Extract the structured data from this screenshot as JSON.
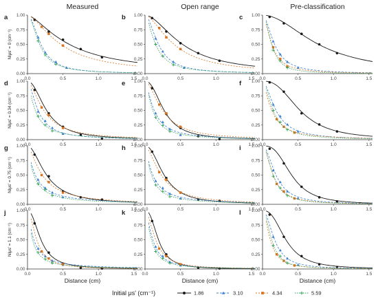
{
  "column_titles": [
    "Measured",
    "Open range",
    "Pre-classification"
  ],
  "row_ylabels": [
    "NIμs' = 0 (cm⁻¹)",
    "NIμs' = 0.34 (cm⁻¹)",
    "NIμs' = 0.75 (cm⁻¹)",
    "NIμs' = 1.1 (cm⁻¹)"
  ],
  "panel_letters": [
    "a",
    "b",
    "c",
    "d",
    "e",
    "f",
    "g",
    "h",
    "i",
    "j",
    "k",
    "l"
  ],
  "xlabel": "Distance (cm)",
  "x_ticks": [
    "0.0",
    "0.5",
    "1.0",
    "1.5"
  ],
  "y_ticks": [
    "0.00",
    "0.25",
    "0.50",
    "0.75",
    "1.00"
  ],
  "legend": {
    "title": "Initial μs' (cm⁻¹)",
    "entries": [
      "1.86",
      "3.10",
      "4.34",
      "5.59"
    ]
  },
  "colors": {
    "s1": "#1a1a1a",
    "s2": "#3b7fd1",
    "s3": "#d9731f",
    "s4": "#34a35a"
  },
  "chart_data": {
    "type": "line",
    "layout": "4x3 grid of line plots",
    "xlim": [
      0,
      1.55
    ],
    "ylim": [
      0,
      1.0
    ],
    "grid": false,
    "legend_placement": "bottom",
    "series_names": [
      "1.86",
      "3.10",
      "4.34",
      "5.59"
    ],
    "panels": [
      {
        "id": "a",
        "series": [
          {
            "name": "1.86",
            "x": [
              0.1,
              0.3,
              0.5,
              0.75,
              1.05
            ],
            "y": [
              0.92,
              0.72,
              0.58,
              0.42,
              0.28
            ]
          },
          {
            "name": "3.10",
            "x": [
              0.15,
              0.25,
              0.4,
              0.55
            ],
            "y": [
              0.62,
              0.36,
              0.2,
              0.1
            ]
          },
          {
            "name": "4.34",
            "x": [
              0.2,
              0.3,
              0.5
            ],
            "y": [
              0.8,
              0.68,
              0.48
            ]
          },
          {
            "name": "5.59",
            "x": [
              0.15,
              0.25,
              0.4
            ],
            "y": [
              0.56,
              0.32,
              0.16
            ]
          }
        ]
      },
      {
        "id": "b",
        "series": [
          {
            "name": "1.86",
            "x": [
              0.1,
              0.3,
              0.5,
              0.75,
              1.05
            ],
            "y": [
              0.95,
              0.72,
              0.52,
              0.35,
              0.22
            ]
          },
          {
            "name": "3.10",
            "x": [
              0.15,
              0.25,
              0.4,
              0.55
            ],
            "y": [
              0.6,
              0.38,
              0.2,
              0.1
            ]
          },
          {
            "name": "4.34",
            "x": [
              0.2,
              0.3,
              0.5
            ],
            "y": [
              0.78,
              0.62,
              0.42
            ]
          },
          {
            "name": "5.59",
            "x": [
              0.15,
              0.25,
              0.4
            ],
            "y": [
              0.5,
              0.3,
              0.15
            ]
          }
        ]
      },
      {
        "id": "c",
        "series": [
          {
            "name": "1.86",
            "x": [
              0.1,
              0.3,
              0.55,
              0.8,
              1.05
            ],
            "y": [
              0.97,
              0.86,
              0.68,
              0.5,
              0.35
            ]
          },
          {
            "name": "3.10",
            "x": [
              0.15,
              0.25,
              0.35,
              0.5
            ],
            "y": [
              0.55,
              0.33,
              0.2,
              0.1
            ]
          },
          {
            "name": "4.34",
            "x": [
              0.15,
              0.25,
              0.35
            ],
            "y": [
              0.45,
              0.25,
              0.12
            ]
          },
          {
            "name": "5.59",
            "x": [
              0.15,
              0.25,
              0.35
            ],
            "y": [
              0.4,
              0.22,
              0.1
            ]
          }
        ]
      },
      {
        "id": "d",
        "series": [
          {
            "name": "1.86",
            "x": [
              0.1,
              0.3,
              0.5,
              0.75,
              1.05
            ],
            "y": [
              0.85,
              0.45,
              0.22,
              0.08,
              0.02
            ]
          },
          {
            "name": "3.10",
            "x": [
              0.15,
              0.25,
              0.35,
              0.5
            ],
            "y": [
              0.48,
              0.32,
              0.2,
              0.1
            ]
          },
          {
            "name": "4.34",
            "x": [
              0.2,
              0.3,
              0.5
            ],
            "y": [
              0.55,
              0.42,
              0.2
            ]
          },
          {
            "name": "5.59",
            "x": [
              0.15,
              0.25,
              0.35
            ],
            "y": [
              0.4,
              0.25,
              0.15
            ]
          }
        ]
      },
      {
        "id": "e",
        "series": [
          {
            "name": "1.86",
            "x": [
              0.1,
              0.3,
              0.5,
              0.75,
              1.05
            ],
            "y": [
              0.88,
              0.44,
              0.2,
              0.06,
              0.01
            ]
          },
          {
            "name": "3.10",
            "x": [
              0.15,
              0.25,
              0.35,
              0.5
            ],
            "y": [
              0.45,
              0.3,
              0.18,
              0.08
            ]
          },
          {
            "name": "4.34",
            "x": [
              0.2,
              0.3,
              0.5
            ],
            "y": [
              0.6,
              0.45,
              0.22
            ]
          },
          {
            "name": "5.59",
            "x": [
              0.15,
              0.25,
              0.35
            ],
            "y": [
              0.38,
              0.24,
              0.14
            ]
          }
        ]
      },
      {
        "id": "f",
        "series": [
          {
            "name": "1.86",
            "x": [
              0.1,
              0.3,
              0.55,
              0.8,
              1.05
            ],
            "y": [
              0.98,
              0.82,
              0.45,
              0.26,
              0.14
            ]
          },
          {
            "name": "3.10",
            "x": [
              0.15,
              0.25,
              0.35,
              0.5
            ],
            "y": [
              0.6,
              0.4,
              0.26,
              0.14
            ]
          },
          {
            "name": "4.34",
            "x": [
              0.2,
              0.3,
              0.45
            ],
            "y": [
              0.35,
              0.22,
              0.12
            ]
          },
          {
            "name": "5.59",
            "x": [
              0.15,
              0.25,
              0.35
            ],
            "y": [
              0.5,
              0.3,
              0.17
            ]
          }
        ]
      },
      {
        "id": "g",
        "series": [
          {
            "name": "1.86",
            "x": [
              0.1,
              0.3,
              0.5,
              0.75,
              1.05
            ],
            "y": [
              0.85,
              0.48,
              0.22,
              0.12,
              0.08
            ]
          },
          {
            "name": "3.10",
            "x": [
              0.15,
              0.25,
              0.35,
              0.5
            ],
            "y": [
              0.42,
              0.28,
              0.2,
              0.12
            ]
          },
          {
            "name": "4.34",
            "x": [
              0.2,
              0.3,
              0.5
            ],
            "y": [
              0.5,
              0.38,
              0.2
            ]
          },
          {
            "name": "5.59",
            "x": [
              0.15,
              0.25,
              0.35
            ],
            "y": [
              0.35,
              0.25,
              0.15
            ]
          }
        ]
      },
      {
        "id": "h",
        "series": [
          {
            "name": "1.86",
            "x": [
              0.1,
              0.3,
              0.5,
              0.75,
              1.05
            ],
            "y": [
              0.9,
              0.45,
              0.2,
              0.08,
              0.06
            ]
          },
          {
            "name": "3.10",
            "x": [
              0.15,
              0.25,
              0.35,
              0.5
            ],
            "y": [
              0.4,
              0.28,
              0.18,
              0.1
            ]
          },
          {
            "name": "4.34",
            "x": [
              0.2,
              0.3,
              0.5
            ],
            "y": [
              0.55,
              0.42,
              0.2
            ]
          },
          {
            "name": "5.59",
            "x": [
              0.15,
              0.25,
              0.35
            ],
            "y": [
              0.33,
              0.22,
              0.13
            ]
          }
        ]
      },
      {
        "id": "i",
        "series": [
          {
            "name": "1.86",
            "x": [
              0.1,
              0.3,
              0.55,
              0.8,
              1.05
            ],
            "y": [
              0.95,
              0.7,
              0.3,
              0.12,
              0.05
            ]
          },
          {
            "name": "3.10",
            "x": [
              0.15,
              0.25,
              0.35,
              0.5
            ],
            "y": [
              0.58,
              0.38,
              0.22,
              0.1
            ]
          },
          {
            "name": "4.34",
            "x": [
              0.2,
              0.3,
              0.45
            ],
            "y": [
              0.35,
              0.22,
              0.1
            ]
          },
          {
            "name": "5.59",
            "x": [
              0.15,
              0.25,
              0.35
            ],
            "y": [
              0.48,
              0.28,
              0.15
            ]
          }
        ]
      },
      {
        "id": "j",
        "series": [
          {
            "name": "1.86",
            "x": [
              0.1,
              0.3,
              0.5,
              0.75,
              1.05
            ],
            "y": [
              0.78,
              0.28,
              0.09,
              0.02,
              0.01
            ]
          },
          {
            "name": "3.10",
            "x": [
              0.15,
              0.25,
              0.35,
              0.5
            ],
            "y": [
              0.35,
              0.22,
              0.14,
              0.07
            ]
          },
          {
            "name": "4.34",
            "x": [
              0.2,
              0.3,
              0.5
            ],
            "y": [
              0.3,
              0.18,
              0.08
            ]
          },
          {
            "name": "5.59",
            "x": [
              0.15,
              0.25,
              0.35
            ],
            "y": [
              0.28,
              0.17,
              0.1
            ]
          }
        ]
      },
      {
        "id": "k",
        "series": [
          {
            "name": "1.86",
            "x": [
              0.1,
              0.3,
              0.5,
              0.75,
              1.05
            ],
            "y": [
              0.82,
              0.25,
              0.08,
              0.02,
              0.01
            ]
          },
          {
            "name": "3.10",
            "x": [
              0.15,
              0.25,
              0.35,
              0.5
            ],
            "y": [
              0.38,
              0.22,
              0.12,
              0.06
            ]
          },
          {
            "name": "4.34",
            "x": [
              0.2,
              0.3,
              0.5
            ],
            "y": [
              0.35,
              0.22,
              0.08
            ]
          },
          {
            "name": "5.59",
            "x": [
              0.15,
              0.25,
              0.35
            ],
            "y": [
              0.3,
              0.18,
              0.1
            ]
          }
        ]
      },
      {
        "id": "l",
        "series": [
          {
            "name": "1.86",
            "x": [
              0.1,
              0.3,
              0.55,
              0.8,
              1.05
            ],
            "y": [
              0.93,
              0.55,
              0.22,
              0.08,
              0.03
            ]
          },
          {
            "name": "3.10",
            "x": [
              0.15,
              0.25,
              0.35,
              0.5
            ],
            "y": [
              0.55,
              0.32,
              0.18,
              0.07
            ]
          },
          {
            "name": "4.34",
            "x": [
              0.2,
              0.3,
              0.45
            ],
            "y": [
              0.25,
              0.14,
              0.06
            ]
          },
          {
            "name": "5.59",
            "x": [
              0.15,
              0.25,
              0.35
            ],
            "y": [
              0.4,
              0.22,
              0.1
            ]
          }
        ]
      }
    ]
  }
}
